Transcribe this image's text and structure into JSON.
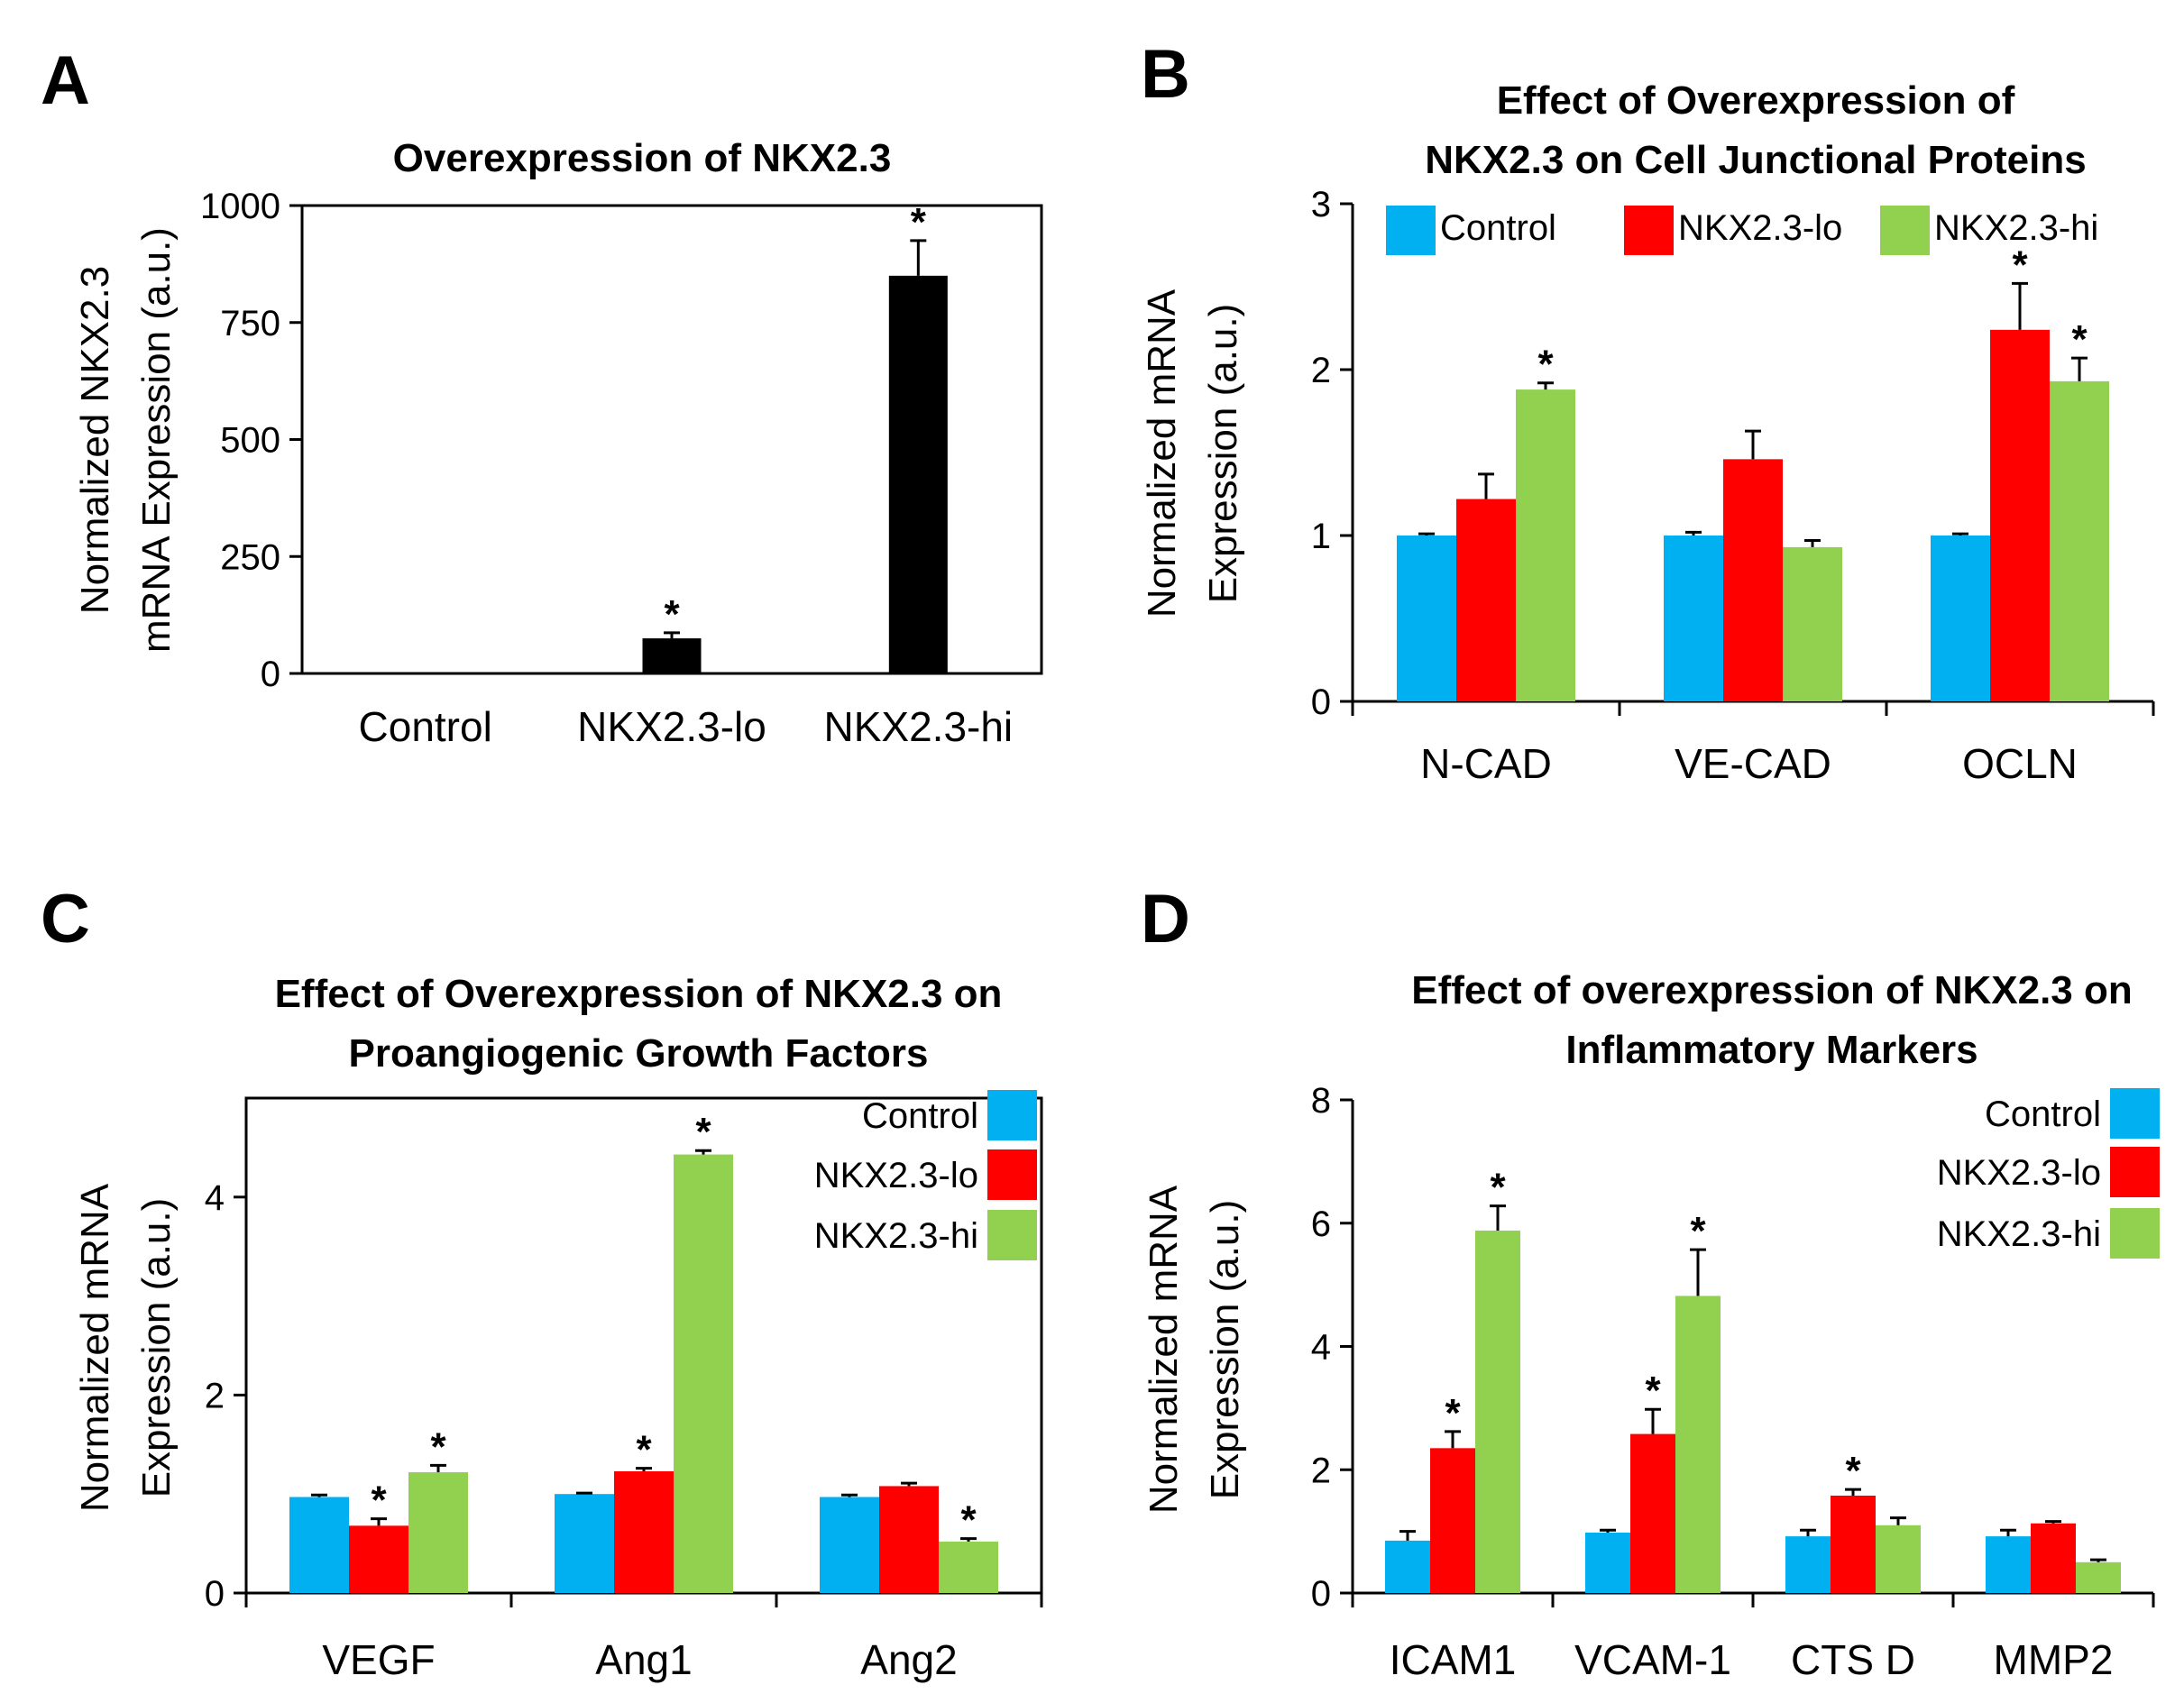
{
  "figure": {
    "colors": {
      "control": "#00B0F0",
      "lo": "#FF0000",
      "hi": "#92D050",
      "black": "#000000"
    }
  },
  "chart_data": [
    {
      "panel": "A",
      "type": "bar",
      "title": [
        "Overexpression of NKX2.3"
      ],
      "ylabel": [
        "Normalized NKX2.3",
        "mRNA Expression (a.u.)"
      ],
      "xlabel": "",
      "ylim": [
        0,
        1000
      ],
      "yticks": [
        0,
        250,
        500,
        750,
        1000
      ],
      "categories": [
        "Control",
        "NKX2.3-lo",
        "NKX2.3-hi"
      ],
      "series": [
        {
          "name": "NKX2.3",
          "color_key": "black",
          "values": [
            1,
            75,
            850
          ],
          "errors": [
            0.5,
            12,
            75
          ],
          "significant": [
            false,
            true,
            true
          ]
        }
      ],
      "legend": null
    },
    {
      "panel": "B",
      "type": "bar",
      "title": [
        "Effect of Overexpression of",
        "NKX2.3 on Cell Junctional Proteins"
      ],
      "ylabel": [
        "Normalized mRNA",
        "Expression (a.u.)"
      ],
      "xlabel": "",
      "ylim": [
        0,
        3
      ],
      "yticks": [
        0,
        1,
        2,
        3
      ],
      "categories": [
        "N-CAD",
        "VE-CAD",
        "OCLN"
      ],
      "series": [
        {
          "name": "Control",
          "color_key": "control",
          "values": [
            1.0,
            1.0,
            1.0
          ],
          "errors": [
            0.01,
            0.02,
            0.01
          ],
          "significant": [
            false,
            false,
            false
          ]
        },
        {
          "name": "NKX2.3-lo",
          "color_key": "lo",
          "values": [
            1.22,
            1.46,
            2.24
          ],
          "errors": [
            0.15,
            0.17,
            0.28
          ],
          "significant": [
            false,
            false,
            true
          ]
        },
        {
          "name": "NKX2.3-hi",
          "color_key": "hi",
          "values": [
            1.88,
            0.93,
            1.93
          ],
          "errors": [
            0.04,
            0.04,
            0.14
          ],
          "significant": [
            true,
            false,
            true
          ]
        }
      ],
      "legend": {
        "placement": "top",
        "entries": [
          "Control",
          "NKX2.3-lo",
          "NKX2.3-hi"
        ]
      }
    },
    {
      "panel": "C",
      "type": "bar",
      "title": [
        "Effect of Overexpression of NKX2.3 on",
        "Proangiogenic Growth Factors"
      ],
      "ylabel": [
        "Normalized mRNA",
        "Expression (a.u.)"
      ],
      "xlabel": "",
      "ylim": [
        0,
        5
      ],
      "yticks": [
        0,
        2,
        4
      ],
      "categories": [
        "VEGF",
        "Ang1",
        "Ang2"
      ],
      "series": [
        {
          "name": "Control",
          "color_key": "control",
          "values": [
            0.97,
            1.0,
            0.97
          ],
          "errors": [
            0.02,
            0.01,
            0.02
          ],
          "significant": [
            false,
            false,
            false
          ]
        },
        {
          "name": "NKX2.3-lo",
          "color_key": "lo",
          "values": [
            0.68,
            1.23,
            1.08
          ],
          "errors": [
            0.07,
            0.03,
            0.03
          ],
          "significant": [
            true,
            true,
            false
          ]
        },
        {
          "name": "NKX2.3-hi",
          "color_key": "hi",
          "values": [
            1.22,
            4.43,
            0.52
          ],
          "errors": [
            0.07,
            0.04,
            0.03
          ],
          "significant": [
            true,
            true,
            true
          ]
        }
      ],
      "legend": {
        "placement": "top-right",
        "entries": [
          "Control",
          "NKX2.3-lo",
          "NKX2.3-hi"
        ]
      }
    },
    {
      "panel": "D",
      "type": "bar",
      "title": [
        "Effect of overexpression of NKX2.3 on",
        "Inflammatory Markers"
      ],
      "ylabel": [
        "Normalized mRNA",
        "Expression (a.u.)"
      ],
      "xlabel": "",
      "ylim": [
        0,
        8
      ],
      "yticks": [
        0,
        2,
        4,
        6,
        8
      ],
      "categories": [
        "ICAM1",
        "VCAM-1",
        "CTS D",
        "MMP2"
      ],
      "series": [
        {
          "name": "Control",
          "color_key": "control",
          "values": [
            0.85,
            0.98,
            0.92,
            0.92
          ],
          "errors": [
            0.15,
            0.04,
            0.1,
            0.1
          ],
          "significant": [
            false,
            false,
            false,
            false
          ]
        },
        {
          "name": "NKX2.3-lo",
          "color_key": "lo",
          "values": [
            2.35,
            2.58,
            1.58,
            1.13
          ],
          "errors": [
            0.27,
            0.4,
            0.1,
            0.03
          ],
          "significant": [
            true,
            true,
            true,
            false
          ]
        },
        {
          "name": "NKX2.3-hi",
          "color_key": "hi",
          "values": [
            5.88,
            4.82,
            1.1,
            0.5
          ],
          "errors": [
            0.4,
            0.75,
            0.12,
            0.04
          ],
          "significant": [
            true,
            true,
            false,
            false
          ]
        }
      ],
      "legend": {
        "placement": "top-right",
        "entries": [
          "Control",
          "NKX2.3-lo",
          "NKX2.3-hi"
        ]
      }
    }
  ]
}
